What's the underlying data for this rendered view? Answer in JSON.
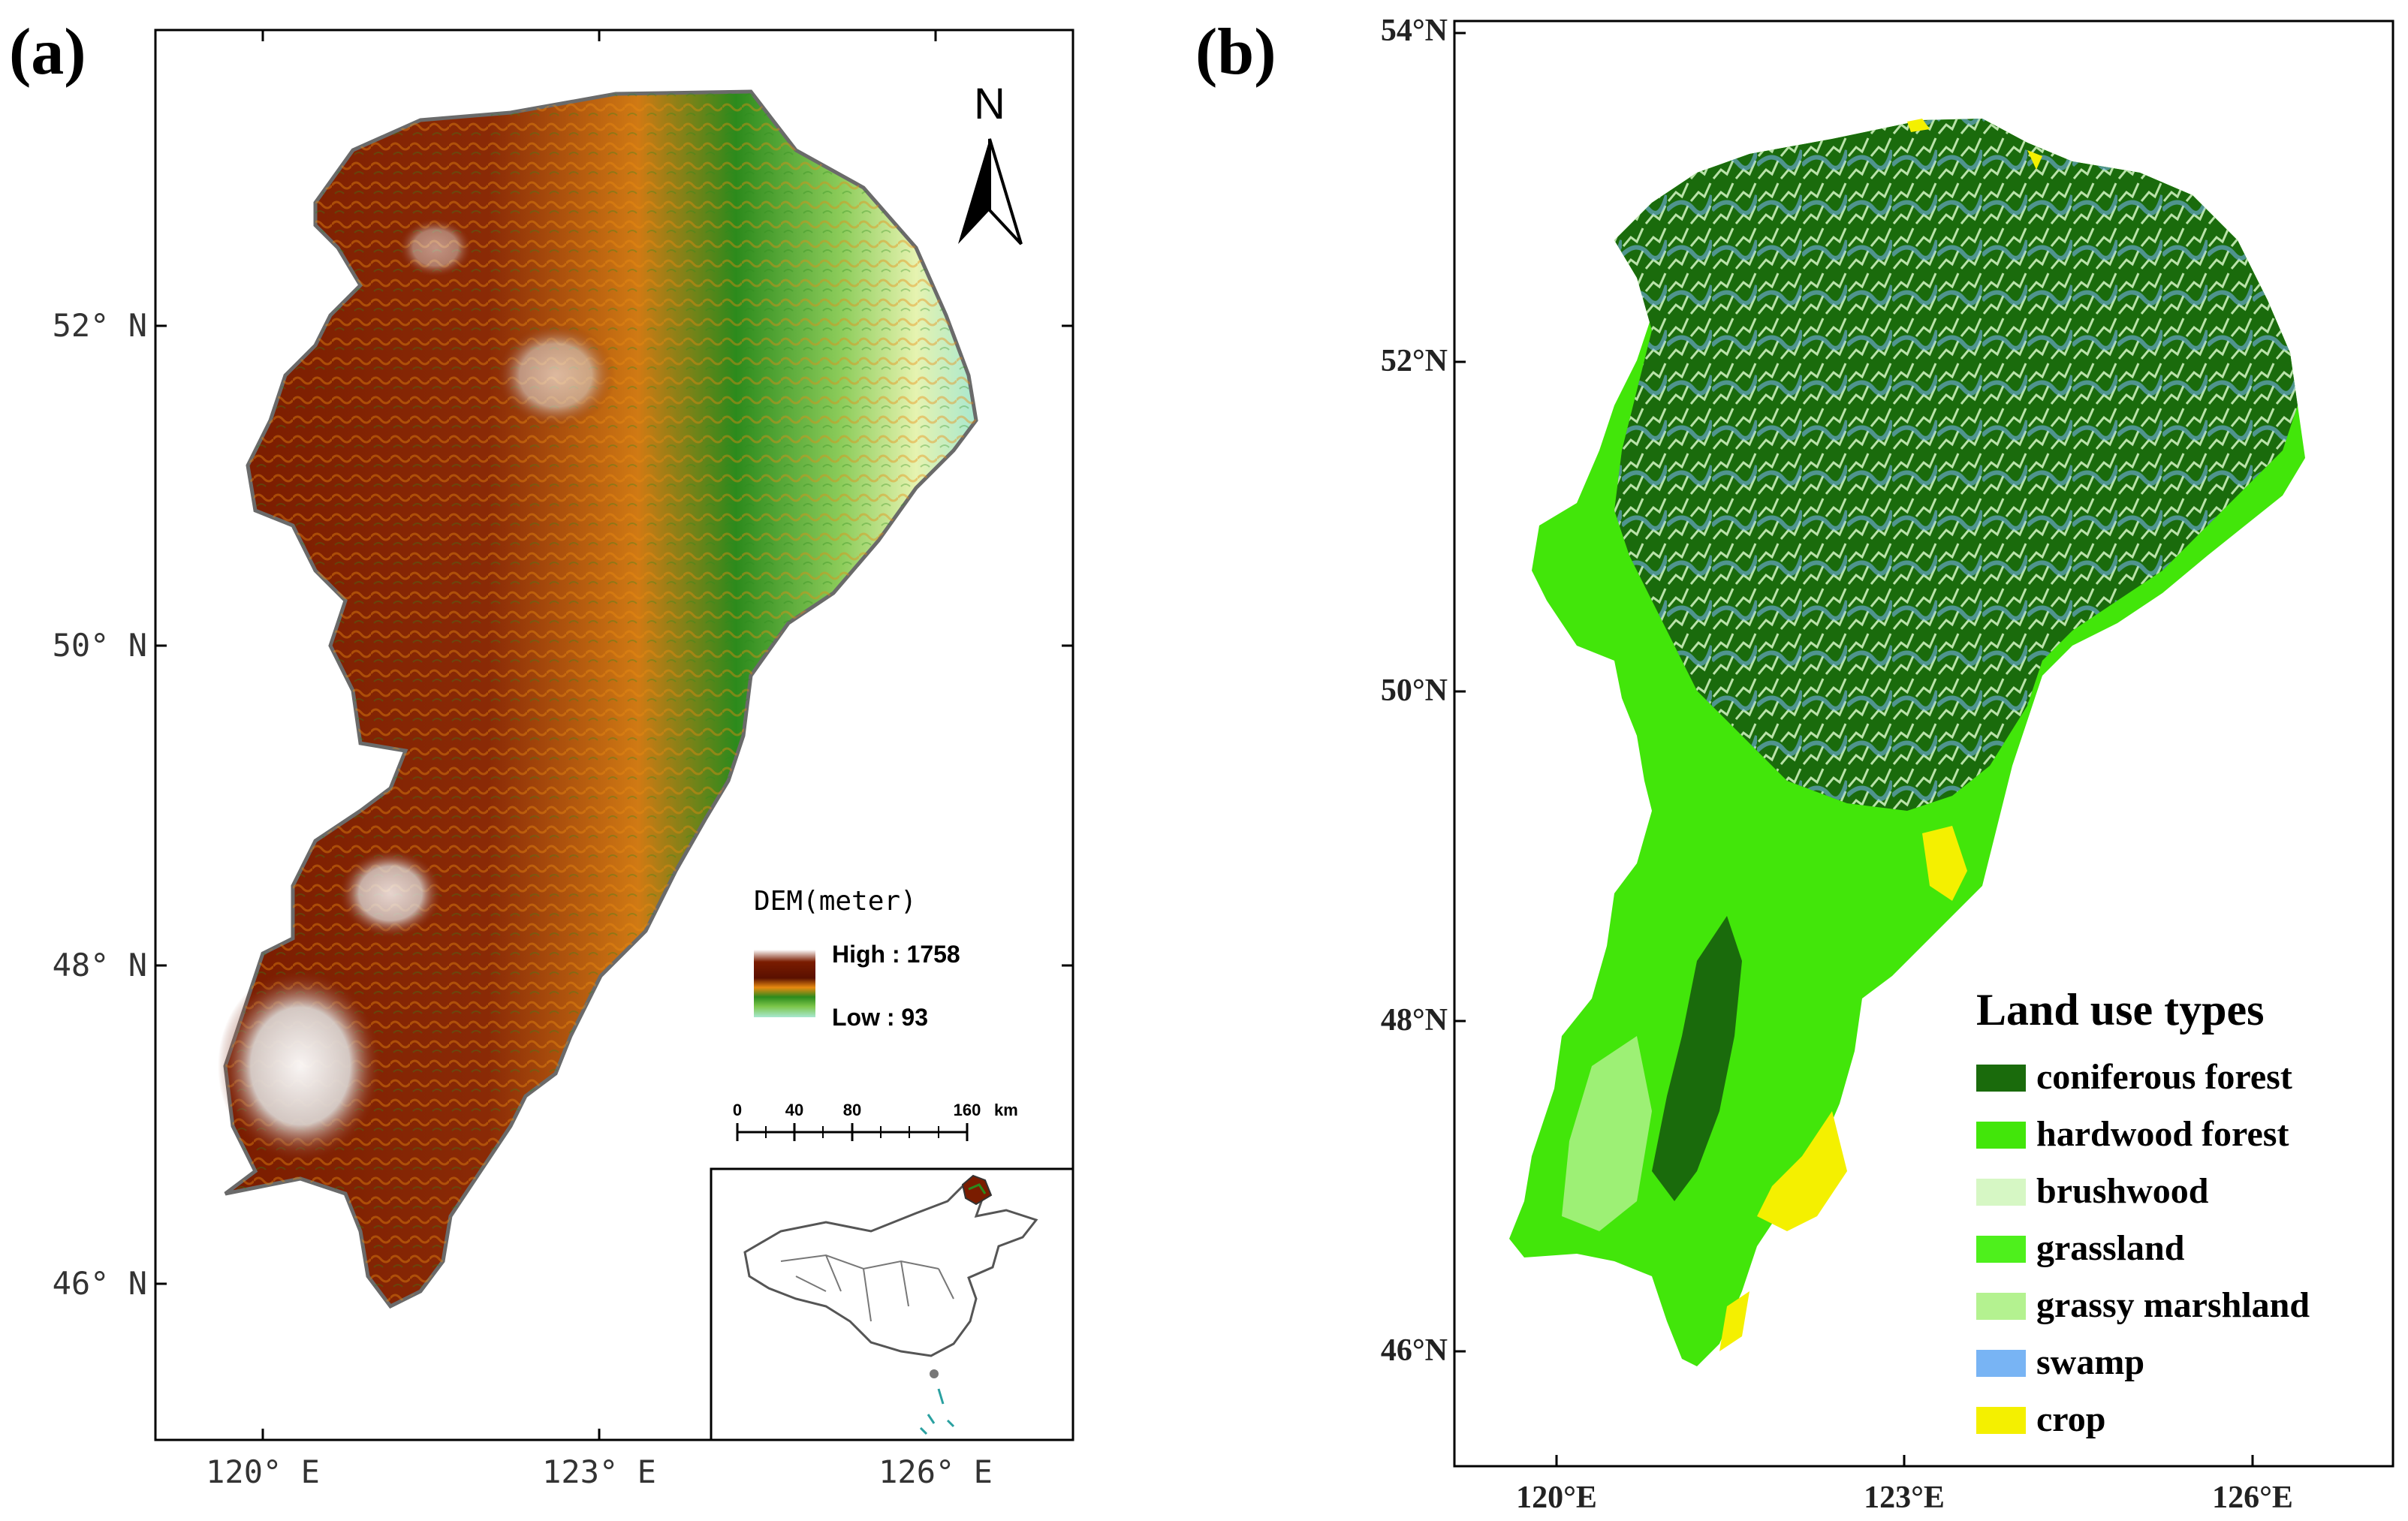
{
  "panel_a": {
    "label": "(a)",
    "lat_ticks": [
      "52° N",
      "50° N",
      "48° N",
      "46° N"
    ],
    "lon_ticks": [
      "120° E",
      "123° E",
      "126° E"
    ],
    "north_arrow": {
      "label": "N",
      "icon": "north-arrow-icon"
    },
    "dem_legend": {
      "title": "DEM(meter)",
      "high": "High : 1758",
      "low": "Low : 93"
    },
    "scale_bar": {
      "ticks": [
        "0",
        "40",
        "80",
        "160"
      ],
      "unit": "km"
    },
    "inset": {
      "description_icon": "china-locator-map-icon"
    },
    "colors": {
      "high": "#ffffff",
      "brown": "#7a1c00",
      "orange": "#e98a10",
      "green": "#2c8a1c",
      "lightgreen": "#7cc64a",
      "low": "#e6f3b0",
      "cyan": "#a8e8d0"
    }
  },
  "panel_b": {
    "label": "(b)",
    "lat_ticks": [
      "54°N",
      "52°N",
      "50°N",
      "48°N",
      "46°N"
    ],
    "lon_ticks": [
      "120°E",
      "123°E",
      "126°E"
    ],
    "legend": {
      "title": "Land use types",
      "items": [
        {
          "label": "coniferous forest",
          "color": "#1a6b0c"
        },
        {
          "label": "hardwood forest",
          "color": "#42e60a"
        },
        {
          "label": "brushwood",
          "color": "#d6f7c4"
        },
        {
          "label": "grassland",
          "color": "#4ef01c"
        },
        {
          "label": "grassy marshland",
          "color": "#b4f290"
        },
        {
          "label": "swamp",
          "color": "#78b4f4"
        },
        {
          "label": "crop",
          "color": "#f4f000"
        }
      ]
    }
  }
}
